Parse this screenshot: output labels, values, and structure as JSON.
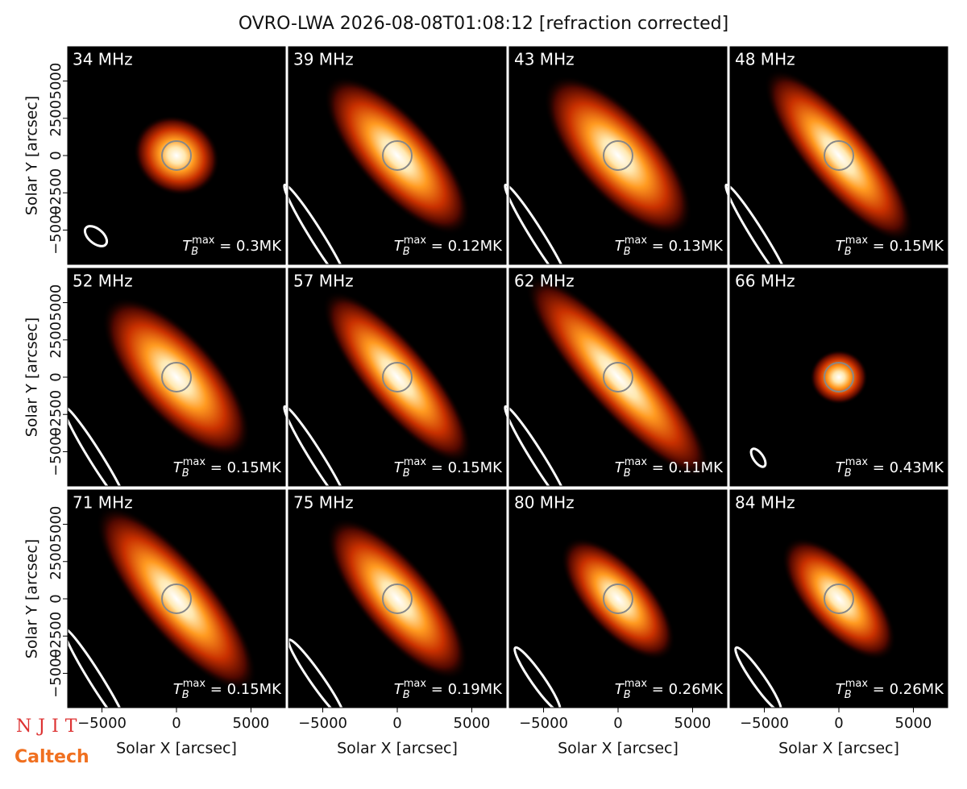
{
  "chart_data": {
    "type": "image-grid",
    "title": "OVRO-LWA 2026-08-08T01:08:12 [refraction corrected]",
    "xlabel": "Solar X [arcsec]",
    "ylabel": "Solar Y [arcsec]",
    "xlim": [
      -7300,
      7300
    ],
    "ylim": [
      -7300,
      7300
    ],
    "xticks": [
      {
        "value": -5000,
        "label": "−5000"
      },
      0,
      5000
    ],
    "yticks": [
      {
        "value": -5000,
        "label": "−5000"
      },
      {
        "value": -2500,
        "label": "−2500"
      },
      0,
      2500,
      5000
    ],
    "tb_symbol": "T",
    "tb_sub": "B",
    "tb_sup": "max",
    "tb_eq": " = ",
    "panels": [
      {
        "label": "34 MHz",
        "tb_max": 0.3,
        "tb_max_label": "0.3MK"
      },
      {
        "label": "39 MHz",
        "tb_max": 0.12,
        "tb_max_label": "0.12MK"
      },
      {
        "label": "43 MHz",
        "tb_max": 0.13,
        "tb_max_label": "0.13MK"
      },
      {
        "label": "48 MHz",
        "tb_max": 0.15,
        "tb_max_label": "0.15MK"
      },
      {
        "label": "52 MHz",
        "tb_max": 0.15,
        "tb_max_label": "0.15MK"
      },
      {
        "label": "57 MHz",
        "tb_max": 0.15,
        "tb_max_label": "0.15MK"
      },
      {
        "label": "62 MHz",
        "tb_max": 0.11,
        "tb_max_label": "0.11MK"
      },
      {
        "label": "66 MHz",
        "tb_max": 0.43,
        "tb_max_label": "0.43MK"
      },
      {
        "label": "71 MHz",
        "tb_max": 0.15,
        "tb_max_label": "0.15MK"
      },
      {
        "label": "75 MHz",
        "tb_max": 0.19,
        "tb_max_label": "0.19MK"
      },
      {
        "label": "80 MHz",
        "tb_max": 0.26,
        "tb_max_label": "0.26MK"
      },
      {
        "label": "84 MHz",
        "tb_max": 0.26,
        "tb_max_label": "0.26MK"
      }
    ],
    "logos": [
      "NJIT",
      "Caltech"
    ]
  }
}
